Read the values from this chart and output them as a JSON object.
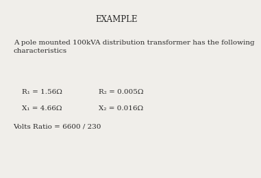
{
  "title": "EXAMPLE",
  "description": "A pole mounted 100kVA distribution transformer has the following\ncharacteristics",
  "line1a": "R₁ = 1.56Ω",
  "line1b": "R₂ = 0.005Ω",
  "line2a": "X₁ = 4.66Ω",
  "line2b": "X₂ = 0.016Ω",
  "line3": "Volts Ratio = 6600 / 230",
  "bg_color": "#f0eeea",
  "text_color": "#2a2a2a",
  "title_fontsize": 8.5,
  "body_fontsize": 7.5
}
